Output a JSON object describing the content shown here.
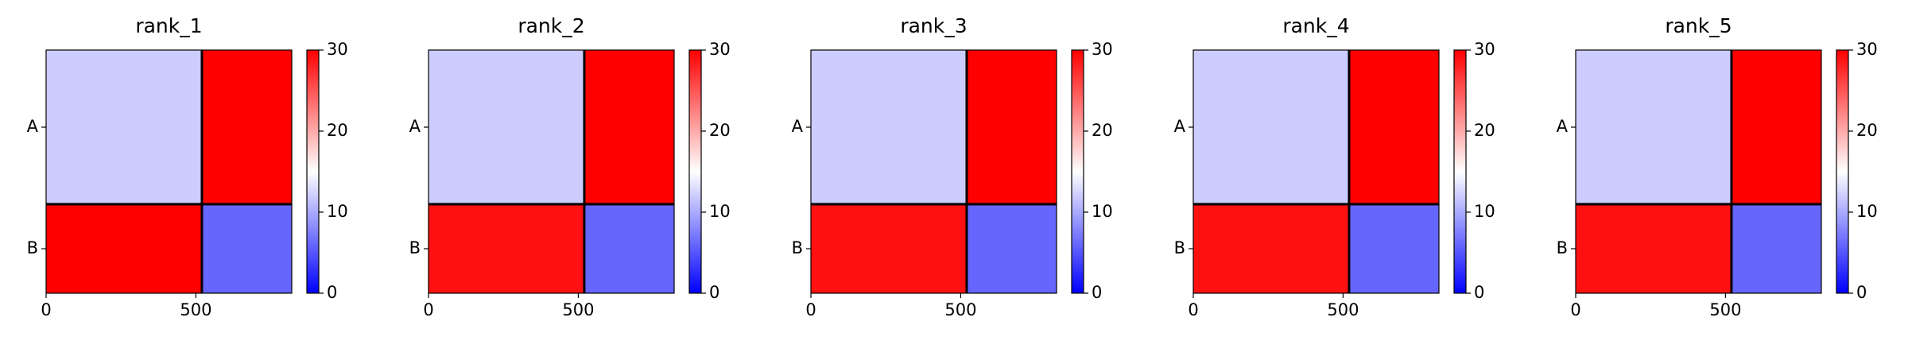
{
  "chart_data": [
    {
      "type": "heatmap",
      "title": "rank_1",
      "colormap": "bwr",
      "xlim": [
        0,
        820
      ],
      "xticks": [
        0,
        500
      ],
      "ylim": [
        820,
        0
      ],
      "categories": [
        "A",
        "B"
      ],
      "chain_bounds": [
        0,
        520,
        820
      ],
      "values": [
        [
          12,
          30
        ],
        [
          30,
          6
        ]
      ],
      "clim": [
        0,
        30
      ],
      "colorbar_ticks": [
        0,
        10,
        20,
        30
      ]
    },
    {
      "type": "heatmap",
      "title": "rank_2",
      "colormap": "bwr",
      "xlim": [
        0,
        820
      ],
      "xticks": [
        0,
        500
      ],
      "ylim": [
        820,
        0
      ],
      "categories": [
        "A",
        "B"
      ],
      "chain_bounds": [
        0,
        520,
        820
      ],
      "values": [
        [
          12,
          30
        ],
        [
          29,
          6
        ]
      ],
      "clim": [
        0,
        30
      ],
      "colorbar_ticks": [
        0,
        10,
        20,
        30
      ]
    },
    {
      "type": "heatmap",
      "title": "rank_3",
      "colormap": "bwr",
      "xlim": [
        0,
        820
      ],
      "xticks": [
        0,
        500
      ],
      "ylim": [
        820,
        0
      ],
      "categories": [
        "A",
        "B"
      ],
      "chain_bounds": [
        0,
        520,
        820
      ],
      "values": [
        [
          12,
          30
        ],
        [
          29,
          6
        ]
      ],
      "clim": [
        0,
        30
      ],
      "colorbar_ticks": [
        0,
        10,
        20,
        30
      ]
    },
    {
      "type": "heatmap",
      "title": "rank_4",
      "colormap": "bwr",
      "xlim": [
        0,
        820
      ],
      "xticks": [
        0,
        500
      ],
      "ylim": [
        820,
        0
      ],
      "categories": [
        "A",
        "B"
      ],
      "chain_bounds": [
        0,
        520,
        820
      ],
      "values": [
        [
          12,
          30
        ],
        [
          29,
          6
        ]
      ],
      "clim": [
        0,
        30
      ],
      "colorbar_ticks": [
        0,
        10,
        20,
        30
      ]
    },
    {
      "type": "heatmap",
      "title": "rank_5",
      "colormap": "bwr",
      "xlim": [
        0,
        820
      ],
      "xticks": [
        0,
        500
      ],
      "ylim": [
        820,
        0
      ],
      "categories": [
        "A",
        "B"
      ],
      "chain_bounds": [
        0,
        520,
        820
      ],
      "values": [
        [
          12,
          30
        ],
        [
          29,
          6
        ]
      ],
      "clim": [
        0,
        30
      ],
      "colorbar_ticks": [
        0,
        10,
        20,
        30
      ]
    }
  ]
}
